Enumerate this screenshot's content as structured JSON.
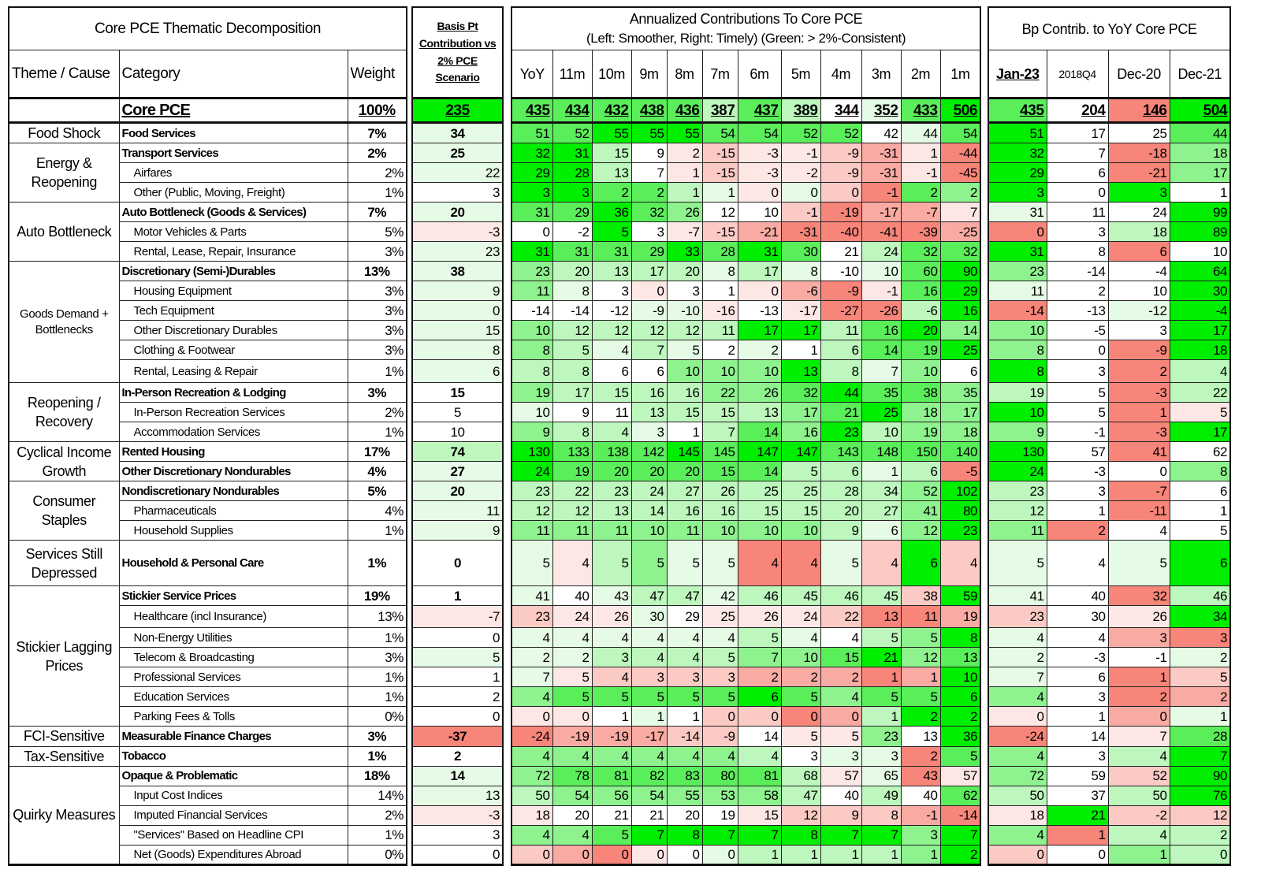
{
  "title": "Core PCE Thematic  Decomposition",
  "basis_header": "Basis Pt Contribution vs 2% PCE Scenario",
  "annualized_title": [
    "Annualized Contributions To Core PCE",
    "(Left: Smoother, Right: Timely) (Green: > 2%-Consistent)"
  ],
  "bp_title": "Bp Contrib. to YoY Core PCE",
  "columns": {
    "theme": "Theme / Cause",
    "category": "Category",
    "weight": "Weight",
    "periods": [
      "YoY",
      "11m",
      "10m",
      "9m",
      "8m",
      "7m",
      "6m",
      "5m",
      "4m",
      "3m",
      "2m",
      "1m"
    ],
    "bp": [
      "Jan-23",
      "2018Q4",
      "Dec-20",
      "Dec-21"
    ]
  },
  "palette": {
    "4": "#00ef00",
    "3": "#5aee5a",
    "2": "#8ef28e",
    "1": "#bdf7bd",
    "0": "#e6fbe6",
    "w": "#ffffff",
    "a": "#fde7e5",
    "b": "#fbcac5",
    "c": "#f9aba3",
    "d": "#f8857a"
  },
  "rows": [
    {
      "theme": "",
      "span": 1,
      "category": "Core PCE",
      "weight": "100%",
      "bold": true,
      "core": true,
      "basis": "235",
      "basis_color": "4",
      "annualized": [
        435,
        434,
        432,
        438,
        436,
        387,
        437,
        389,
        344,
        352,
        433,
        506
      ],
      "annualized_colors": "33333131w034",
      "bp": [
        435,
        204,
        146,
        504
      ],
      "bp_colors": "3wd4"
    },
    {
      "theme": "Food Shock",
      "span": 1,
      "category": "Food Services",
      "weight": "7%",
      "bold": true,
      "basis": "34",
      "basis_color": "0",
      "annualized": [
        51,
        52,
        55,
        55,
        55,
        54,
        54,
        52,
        52,
        42,
        44,
        54
      ],
      "annualized_colors": "334443333w03",
      "bp": [
        51,
        17,
        25,
        44
      ],
      "bp_colors": "4ww3"
    },
    {
      "theme": "Energy & Reopening",
      "span": 3,
      "category": "Transport Services",
      "weight": "2%",
      "bold": true,
      "basis": "25",
      "basis_color": "0",
      "annualized": [
        32,
        31,
        15,
        9,
        2,
        -15,
        -3,
        -1,
        -9,
        -31,
        1,
        -44
      ],
      "annualized_colors": "441wabaabcad",
      "bp": [
        32,
        7,
        -18,
        18
      ],
      "bp_colors": "4wd2"
    },
    {
      "category": "Airfares",
      "weight": "2%",
      "basis": "22",
      "basis_color": "0",
      "annualized": [
        29,
        28,
        13,
        7,
        1,
        -15,
        -3,
        -2,
        -9,
        -31,
        -1,
        -45
      ],
      "annualized_colors": "441wabaabcad",
      "bp": [
        29,
        6,
        -21,
        17
      ],
      "bp_colors": "4wd2"
    },
    {
      "category": "Other (Public, Moving, Freight)",
      "weight": "1%",
      "basis": "3",
      "basis_color": "w",
      "annualized": [
        3,
        3,
        2,
        2,
        1,
        1,
        0,
        0,
        0,
        -1,
        2,
        2
      ],
      "annualized_colors": "443310a0bd32",
      "bp": [
        3,
        0,
        3,
        1
      ],
      "bp_colors": "4w4w"
    },
    {
      "theme": "Auto Bottleneck",
      "span": 3,
      "category": "Auto Bottleneck (Goods & Services)",
      "weight": "7%",
      "bold": true,
      "basis": "20",
      "basis_color": "0",
      "annualized": [
        31,
        29,
        36,
        32,
        26,
        12,
        10,
        -1,
        -19,
        -17,
        -7,
        7
      ],
      "annualized_colors": "33432wwbdcca",
      "bp": [
        31,
        11,
        24,
        99
      ],
      "bp_colors": "0ww4"
    },
    {
      "category": "Motor Vehicles & Parts",
      "weight": "5%",
      "basis": "-3",
      "basis_color": "a",
      "annualized": [
        0,
        -2,
        5,
        3,
        -7,
        -15,
        -21,
        -31,
        -40,
        -41,
        -39,
        -25
      ],
      "annualized_colors": "ww4wabcddddc",
      "bp": [
        0,
        3,
        18,
        89
      ],
      "bp_colors": "dw14"
    },
    {
      "category": "Rental, Lease, Repair, Insurance",
      "weight": "3%",
      "basis": "23",
      "basis_color": "0",
      "annualized": [
        31,
        31,
        31,
        29,
        33,
        28,
        31,
        30,
        21,
        24,
        32,
        32
      ],
      "annualized_colors": "43334343w133",
      "bp": [
        31,
        8,
        6,
        10
      ],
      "bp_colors": "4wdw"
    },
    {
      "theme": "Goods Demand + Bottlenecks",
      "span": 6,
      "small": true,
      "category": "Discretionary (Semi-)Durables",
      "weight": "13%",
      "bold": true,
      "basis": "38",
      "basis_color": "0",
      "annualized": [
        23,
        20,
        13,
        17,
        20,
        8,
        17,
        8,
        -10,
        10,
        60,
        90
      ],
      "annualized_colors": "21111010w034",
      "bp": [
        23,
        -14,
        -4,
        64
      ],
      "bp_colors": "2ww4"
    },
    {
      "category": "Housing Equipment",
      "weight": "3%",
      "basis": "9",
      "basis_color": "0",
      "annualized": [
        11,
        8,
        3,
        0,
        3,
        1,
        0,
        -6,
        -9,
        -1,
        16,
        29
      ],
      "annualized_colors": "20wawwacda34",
      "bp": [
        11,
        2,
        10,
        30
      ],
      "bp_colors": "0ww4"
    },
    {
      "category": "Tech Equipment",
      "weight": "3%",
      "basis": "0",
      "basis_color": "0",
      "annualized": [
        -14,
        -14,
        -12,
        -9,
        -10,
        -16,
        -13,
        -17,
        -27,
        -26,
        -6,
        16
      ],
      "annualized_colors": "www00awadd14",
      "bp": [
        -14,
        -13,
        -12,
        -4
      ],
      "bp_colors": "dw04"
    },
    {
      "category": "Other Discretionary Durables",
      "weight": "3%",
      "basis": "15",
      "basis_color": "0",
      "annualized": [
        10,
        12,
        12,
        12,
        12,
        11,
        17,
        17,
        11,
        16,
        20,
        14
      ],
      "annualized_colors": "211111441342",
      "bp": [
        10,
        -5,
        3,
        17
      ],
      "bp_colors": "2ww4"
    },
    {
      "category": "Clothing & Footwear",
      "weight": "3%",
      "basis": "8",
      "basis_color": "0",
      "annualized": [
        8,
        5,
        4,
        7,
        5,
        2,
        2,
        1,
        6,
        14,
        19,
        25
      ],
      "annualized_colors": "21010w0w1334",
      "bp": [
        8,
        0,
        -9,
        18
      ],
      "bp_colors": "2wd4"
    },
    {
      "category": "Rental, Leasing & Repair",
      "weight": "1%",
      "basis": "6",
      "basis_color": "0",
      "annualized": [
        8,
        8,
        6,
        6,
        10,
        10,
        10,
        13,
        8,
        7,
        10,
        6
      ],
      "annualized_colors": "11ww2224102w",
      "bp": [
        8,
        3,
        2,
        4
      ],
      "bp_colors": "4wd1"
    },
    {
      "theme": "Reopening / Recovery",
      "span": 3,
      "category": "In-Person Recreation & Lodging",
      "weight": "3%",
      "bold": true,
      "basis": "15",
      "basis_color": "w",
      "annualized": [
        19,
        17,
        15,
        16,
        16,
        22,
        26,
        32,
        44,
        35,
        38,
        35
      ],
      "annualized_colors": "211112234332",
      "bp": [
        19,
        5,
        -3,
        22
      ],
      "bp_colors": "1wd1"
    },
    {
      "category": "In-Person Recreation Services",
      "weight": "2%",
      "basis": "5",
      "basis_center": true,
      "basis_color": "w",
      "annualized": [
        10,
        9,
        11,
        13,
        15,
        15,
        13,
        17,
        21,
        25,
        18,
        17
      ],
      "annualized_colors": "0ww111123422",
      "bp": [
        10,
        5,
        1,
        5
      ],
      "bp_colors": "4wda"
    },
    {
      "category": "Accommodation Services",
      "weight": "1%",
      "basis": "10",
      "basis_center": true,
      "basis_color": "w",
      "annualized": [
        9,
        8,
        4,
        3,
        1,
        7,
        14,
        16,
        23,
        10,
        19,
        18
      ],
      "annualized_colors": "2110w1324122",
      "bp": [
        9,
        -1,
        -3,
        17
      ],
      "bp_colors": "2wd4"
    },
    {
      "theme": "Cyclical  Income Growth",
      "span": 2,
      "category": "Rented Housing",
      "weight": "17%",
      "bold": true,
      "basis": "74",
      "basis_color": "1",
      "annualized": [
        130,
        133,
        138,
        142,
        145,
        145,
        147,
        147,
        143,
        148,
        150,
        140
      ],
      "annualized_colors": "433343443333",
      "bp": [
        130,
        57,
        41,
        62
      ],
      "bp_colors": "4wdw"
    },
    {
      "category": "Other Discretionary Nondurables",
      "weight": "4%",
      "bold": true,
      "basis": "27",
      "basis_color": "0",
      "annualized": [
        24,
        19,
        20,
        20,
        20,
        15,
        14,
        5,
        6,
        1,
        6,
        -5
      ],
      "annualized_colors": "43333331101d",
      "bp": [
        24,
        -3,
        0,
        8
      ],
      "bp_colors": "4ww2"
    },
    {
      "theme": "Consumer Staples",
      "span": 3,
      "category": "Nondiscretionary Nondurables",
      "weight": "5%",
      "bold": true,
      "basis": "20",
      "basis_color": "0",
      "annualized": [
        23,
        22,
        23,
        24,
        27,
        26,
        25,
        25,
        28,
        34,
        52,
        102
      ],
      "annualized_colors": "111111111124",
      "bp": [
        23,
        3,
        -7,
        6
      ],
      "bp_colors": "1wdw"
    },
    {
      "category": "Pharmaceuticals",
      "weight": "4%",
      "basis": "11",
      "basis_color": "0",
      "annualized": [
        12,
        12,
        13,
        14,
        16,
        16,
        15,
        15,
        20,
        27,
        41,
        80
      ],
      "annualized_colors": "111111111124",
      "bp": [
        12,
        1,
        -11,
        1
      ],
      "bp_colors": "1wdw"
    },
    {
      "category": "Household Supplies",
      "weight": "1%",
      "basis": "9",
      "basis_color": "0",
      "annualized": [
        11,
        11,
        11,
        10,
        11,
        10,
        10,
        10,
        9,
        6,
        12,
        23
      ],
      "annualized_colors": "222222221024",
      "bp": [
        11,
        2,
        4,
        5
      ],
      "bp_colors": "2dww"
    },
    {
      "theme": "Services Still Depressed",
      "span": 1,
      "category": "Household & Personal Care",
      "weight": "1%",
      "bold": true,
      "basis": "0",
      "basis_color": "w",
      "annualized": [
        5,
        4,
        5,
        5,
        5,
        5,
        4,
        4,
        5,
        4,
        6,
        4
      ],
      "annualized_colors": "0a1200dd0b4b",
      "bp": [
        5,
        4,
        5,
        6
      ],
      "bp_colors": "0w04"
    },
    {
      "theme": "Stickier Lagging Prices",
      "span": 7,
      "category": "Stickier Service Prices",
      "weight": "19%",
      "bold": true,
      "basis": "1",
      "basis_color": "w",
      "annualized": [
        41,
        40,
        43,
        47,
        47,
        42,
        46,
        45,
        46,
        45,
        38,
        59
      ],
      "annualized_colors": "0w01101111b4",
      "bp": [
        41,
        40,
        32,
        46
      ],
      "bp_colors": "0wd1"
    },
    {
      "category": "Healthcare (incl Insurance)",
      "weight": "13%",
      "basis": "-7",
      "basis_color": "a",
      "annualized": [
        23,
        24,
        26,
        30,
        29,
        25,
        26,
        24,
        22,
        13,
        11,
        19
      ],
      "annualized_colors": "baa0waaabddc",
      "bp": [
        23,
        30,
        26,
        34
      ],
      "bp_colors": "bwa4"
    },
    {
      "category": "Non-Energy Utilities",
      "weight": "1%",
      "basis": "0",
      "basis_color": "w",
      "annualized": [
        4,
        4,
        4,
        4,
        4,
        4,
        5,
        4,
        4,
        5,
        5,
        8
      ],
      "annualized_colors": "00000010w124",
      "bp": [
        4,
        4,
        3,
        3
      ],
      "bp_colors": "0wcd"
    },
    {
      "category": "Telecom & Broadcasting",
      "weight": "3%",
      "basis": "5",
      "basis_color": "0",
      "annualized": [
        2,
        2,
        3,
        4,
        4,
        5,
        7,
        10,
        15,
        21,
        12,
        13
      ],
      "annualized_colors": "001111223423",
      "bp": [
        2,
        -3,
        -1,
        2
      ],
      "bp_colors": "0ww0"
    },
    {
      "category": "Professional Services",
      "weight": "1%",
      "basis": "1",
      "basis_color": "w",
      "annualized": [
        7,
        5,
        4,
        3,
        3,
        3,
        2,
        2,
        2,
        1,
        1,
        10
      ],
      "annualized_colors": "0abbbbcccdc4",
      "bp": [
        7,
        6,
        1,
        5
      ],
      "bp_colors": "0wdb"
    },
    {
      "category": "Education Services",
      "weight": "1%",
      "basis": "2",
      "basis_color": "w",
      "annualized": [
        4,
        5,
        5,
        5,
        5,
        5,
        6,
        5,
        4,
        5,
        5,
        6
      ],
      "annualized_colors": "233333432334",
      "bp": [
        4,
        3,
        2,
        2
      ],
      "bp_colors": "2wdc"
    },
    {
      "category": "Parking Fees & Tolls",
      "weight": "0%",
      "basis": "0",
      "basis_color": "w",
      "annualized": [
        0,
        0,
        1,
        1,
        1,
        0,
        0,
        0,
        0,
        1,
        2,
        2
      ],
      "annualized_colors": "aaw0wbbdc144",
      "bp": [
        0,
        1,
        0,
        1
      ],
      "bp_colors": "awc0"
    },
    {
      "theme": "FCI-Sensitive",
      "span": 1,
      "category": "Measurable Finance Charges",
      "weight": "3%",
      "bold": true,
      "basis": "-37",
      "basis_color": "d",
      "annualized": [
        -24,
        -19,
        -19,
        -17,
        -14,
        -9,
        14,
        5,
        5,
        23,
        13,
        36
      ],
      "annualized_colors": "dcccbbwaa2w4",
      "bp": [
        -24,
        14,
        7,
        28
      ],
      "bp_colors": "dwa3"
    },
    {
      "theme": "Tax-Sensitive",
      "span": 1,
      "category": "Tobacco",
      "weight": "1%",
      "bold": true,
      "basis": "2",
      "basis_color": "w",
      "annualized": [
        4,
        4,
        4,
        4,
        4,
        4,
        4,
        3,
        3,
        3,
        2,
        5
      ],
      "annualized_colors": "2222221w00d3",
      "bp": [
        4,
        3,
        4,
        7
      ],
      "bp_colors": "2w14"
    },
    {
      "theme": "Quirky Measures",
      "span": 5,
      "category": "Opaque & Problematic",
      "weight": "18%",
      "bold": true,
      "basis": "14",
      "basis_color": "0",
      "annualized": [
        72,
        78,
        81,
        82,
        83,
        80,
        81,
        68,
        57,
        65,
        43,
        57
      ],
      "annualized_colors": "23333331a0da",
      "bp": [
        72,
        59,
        52,
        90
      ],
      "bp_colors": "2wb4"
    },
    {
      "category": "Input Cost Indices",
      "weight": "14%",
      "basis": "13",
      "basis_color": "0",
      "annualized": [
        50,
        54,
        56,
        54,
        55,
        53,
        58,
        47,
        40,
        49,
        40,
        62
      ],
      "annualized_colors": "12222221w1w3",
      "bp": [
        50,
        37,
        50,
        76
      ],
      "bp_colors": "1w14"
    },
    {
      "category": "Imputed Financial Services",
      "weight": "2%",
      "basis": "-3",
      "basis_color": "a",
      "annualized": [
        18,
        20,
        21,
        21,
        20,
        19,
        15,
        12,
        9,
        8,
        -1,
        -14
      ],
      "annualized_colors": "awwwwwabbbcd",
      "bp": [
        18,
        21,
        -2,
        12
      ],
      "bp_colors": "a4bb"
    },
    {
      "category": "\"Services\" Based on Headline CPI",
      "weight": "1%",
      "basis": "3",
      "basis_color": "w",
      "annualized": [
        4,
        4,
        5,
        7,
        8,
        7,
        7,
        8,
        7,
        7,
        3,
        7
      ],
      "annualized_colors": "223444444424",
      "bp": [
        4,
        1,
        4,
        2
      ],
      "bp_colors": "2d11"
    },
    {
      "category": "Net (Goods) Expenditures Abroad",
      "weight": "0%",
      "basis": "0",
      "basis_color": "w",
      "annualized": [
        0,
        0,
        0,
        0,
        0,
        0,
        1,
        1,
        1,
        1,
        1,
        2
      ],
      "annualized_colors": "bcdaw0111124",
      "bp": [
        0,
        0,
        1,
        0
      ],
      "bp_colors": "bw21"
    }
  ]
}
